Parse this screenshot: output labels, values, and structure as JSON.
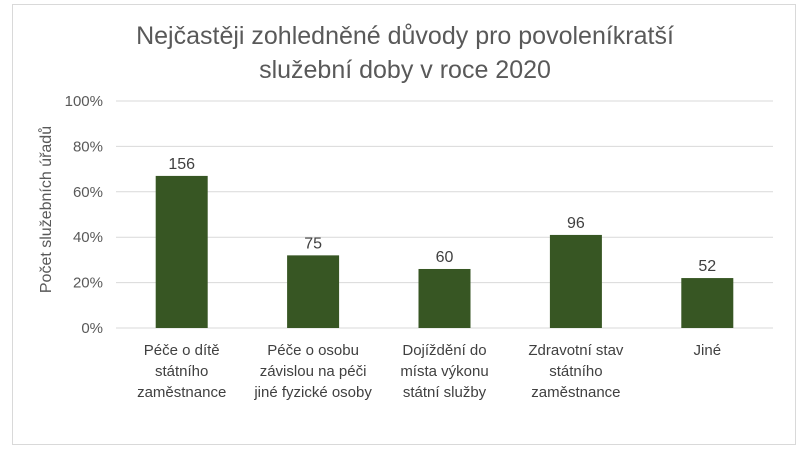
{
  "chart_data": {
    "type": "bar",
    "title_lines": [
      "Nejčastěji zohledněné důvody pro povoleníkratší",
      "služební doby v roce 2020"
    ],
    "xlabel": "",
    "ylabel": "Počet služebních úřadů",
    "categories": [
      [
        "Péče o dítě",
        "státního",
        "zaměstnance"
      ],
      [
        "Péče o osobu",
        "závislou na péči",
        "jiné fyzické osoby"
      ],
      [
        "Dojíždění do",
        "místa výkonu",
        "státní služby"
      ],
      [
        "Zdravotní stav",
        "státního",
        "zaměstnance"
      ],
      [
        "Jiné"
      ]
    ],
    "values": [
      0.67,
      0.32,
      0.26,
      0.41,
      0.22
    ],
    "data_labels": [
      "156",
      "75",
      "60",
      "96",
      "52"
    ],
    "ylim": [
      0,
      1
    ],
    "yticks": [
      0,
      0.2,
      0.4,
      0.6,
      0.8,
      1.0
    ],
    "ytick_labels": [
      "0%",
      "20%",
      "40%",
      "60%",
      "80%",
      "100%"
    ],
    "grid": true,
    "legend": "none",
    "colors": {
      "bar": "#375623",
      "grid": "#d9d9d9",
      "axis_text": "#595959"
    }
  }
}
